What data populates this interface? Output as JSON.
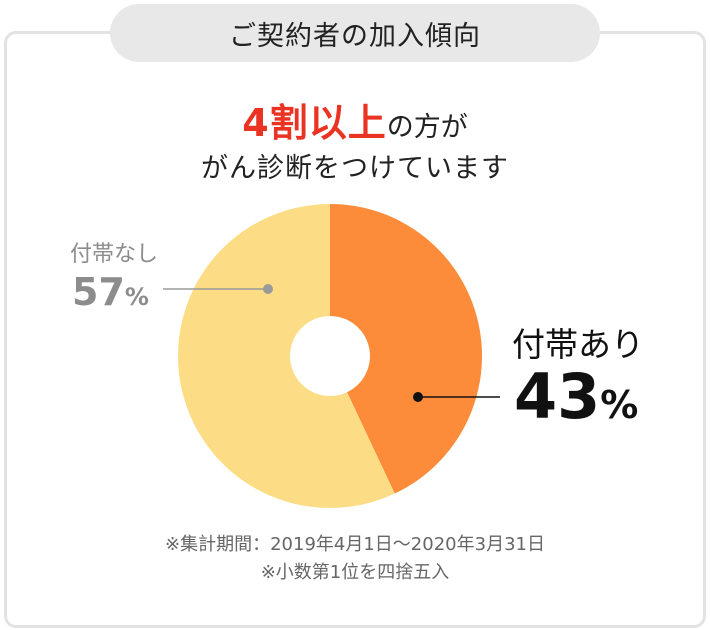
{
  "title": "ご契約者の加入傾向",
  "headline": {
    "accent": "4割以上",
    "line1_rest": "の方が",
    "line2": "がん診断をつけています"
  },
  "chart_data": {
    "type": "pie",
    "donut": true,
    "slices": [
      {
        "label": "付帯あり",
        "value": 43,
        "value_text": "43",
        "unit": "%",
        "color": "#fc8c3a"
      },
      {
        "label": "付帯なし",
        "value": 57,
        "value_text": "57",
        "unit": "%",
        "color": "#fcdd85"
      }
    ]
  },
  "notes": {
    "period": "※集計期間：2019年4月1日～2020年3月31日",
    "rounding": "※小数第1位を四捨五入"
  }
}
